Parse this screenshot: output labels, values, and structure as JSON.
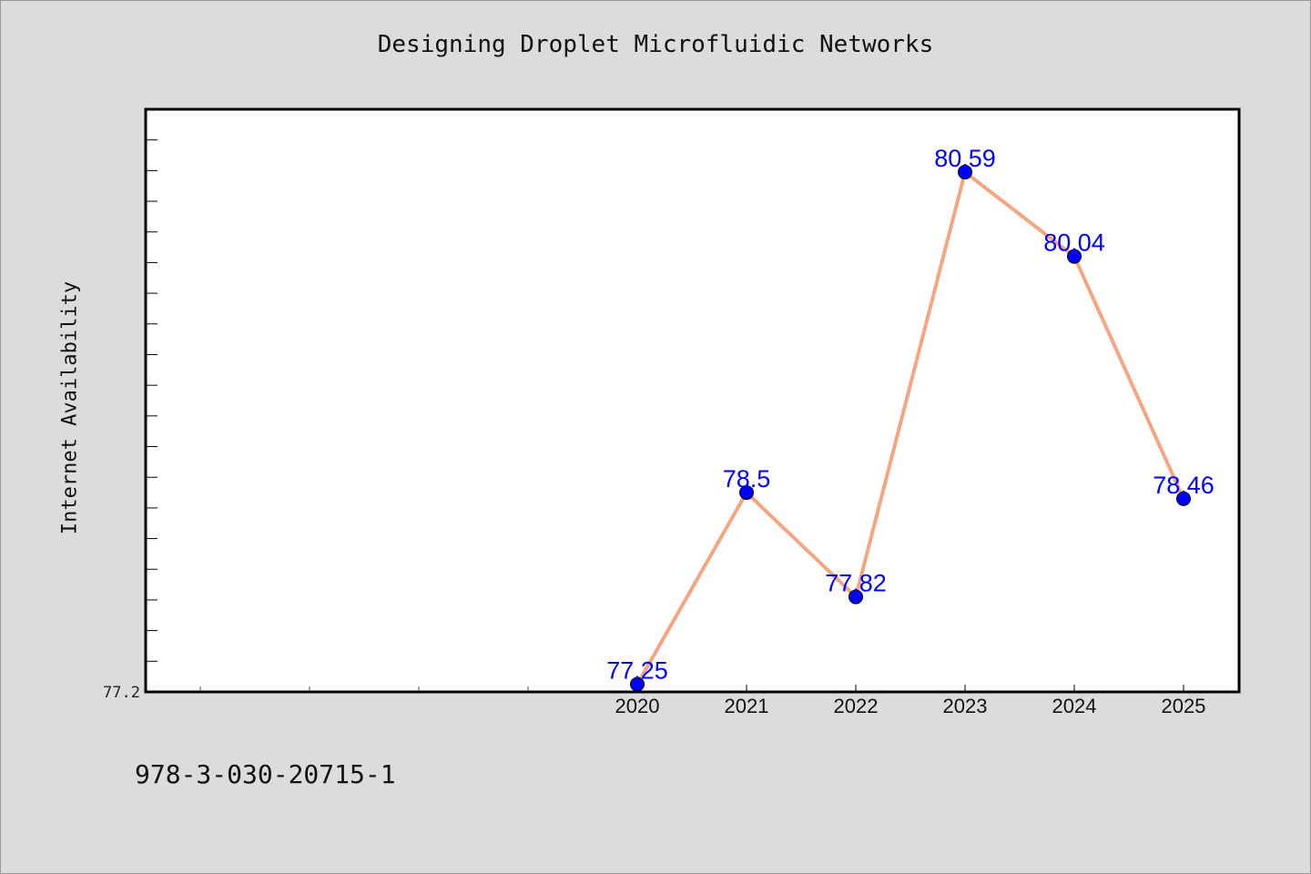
{
  "footer": {
    "text": "978-3-030-20715-1"
  },
  "chart_data": {
    "type": "line",
    "title": "Designing Droplet Microfluidic Networks",
    "xlabel": "",
    "ylabel": "Internet Availability",
    "x": [
      "2020",
      "2021",
      "2022",
      "2023",
      "2024",
      "2025"
    ],
    "series": [
      {
        "values": [
          77.25,
          78.5,
          77.82,
          80.59,
          80.04,
          78.46
        ]
      }
    ],
    "data_labels": [
      "77.25",
      "78.5",
      "77.82",
      "80.59",
      "80.04",
      "78.46"
    ],
    "y_tick_labels": [
      "77.2"
    ],
    "ylim": [
      77.2,
      81.0
    ],
    "x_minor_ticks": 5,
    "grid": false,
    "legend": "none",
    "colors": {
      "line": "#f4a582",
      "marker": "#0000ff",
      "data_label": "#0000ff",
      "axis": "#000000",
      "plot_background": "#ffffff",
      "page_background": "#dcdcdc"
    }
  }
}
